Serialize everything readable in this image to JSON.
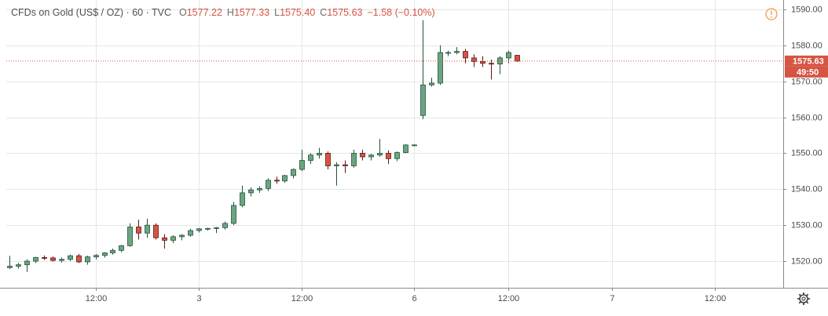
{
  "chart_data": {
    "type": "candlestick",
    "title": "CFDs on Gold (US$ / OZ) · 60 · TVC",
    "ohlc_legend": [
      {
        "key": "O",
        "text": "1577.22"
      },
      {
        "key": "H",
        "text": "1577.33"
      },
      {
        "key": "L",
        "text": "1575.40"
      },
      {
        "key": "C",
        "text": "1575.63"
      }
    ],
    "change": "−1.58 (−0.10%)",
    "price_label": "1575.63",
    "countdown": "49:50",
    "up_color": "#6ba583",
    "down_color": "#d75442",
    "open": [
      1518.2,
      1518.6,
      1519.0,
      1520.0,
      1521.0,
      1520.9,
      1520.2,
      1520.5,
      1521.5,
      1519.8,
      1521.2,
      1521.6,
      1522.3,
      1523.0,
      1524.3,
      1529.5,
      1527.8,
      1530.0,
      1526.5,
      1525.8,
      1526.8,
      1527.2,
      1528.5,
      1529.0,
      1529.1,
      1529.3,
      1530.5,
      1535.5,
      1539.0,
      1539.8,
      1540.2,
      1542.5,
      1542.3,
      1543.8,
      1545.5,
      1548.0,
      1549.5,
      1550.0,
      1546.5,
      1546.8,
      1546.5,
      1550.0,
      1549.0,
      1549.5,
      1550.0,
      1548.5,
      1550.2,
      1552.3,
      1560.5,
      1569.0,
      1569.5,
      1577.8,
      1578.0,
      1578.3,
      1576.5,
      1575.5,
      1575.0,
      1574.8,
      1576.5,
      1577.22
    ],
    "high": [
      1521.5,
      1519.5,
      1520.5,
      1521.2,
      1521.6,
      1521.3,
      1521.0,
      1521.8,
      1522.0,
      1521.5,
      1522.0,
      1522.5,
      1523.5,
      1524.5,
      1530.5,
      1531.5,
      1531.8,
      1530.5,
      1527.5,
      1527.2,
      1527.5,
      1529.0,
      1529.2,
      1529.3,
      1529.5,
      1531.0,
      1536.5,
      1541.0,
      1540.5,
      1540.8,
      1543.0,
      1543.5,
      1544.0,
      1545.8,
      1551.0,
      1550.0,
      1551.5,
      1550.5,
      1547.5,
      1548.0,
      1551.0,
      1551.0,
      1549.8,
      1554.0,
      1550.8,
      1550.5,
      1552.5,
      1552.5,
      1587.0,
      1571.0,
      1580.0,
      1578.5,
      1579.5,
      1579.0,
      1577.5,
      1577.0,
      1576.0,
      1577.0,
      1578.5,
      1577.33
    ],
    "low": [
      1517.8,
      1517.9,
      1517.0,
      1519.5,
      1520.3,
      1519.9,
      1519.6,
      1520.0,
      1519.5,
      1519.0,
      1520.5,
      1521.0,
      1521.8,
      1522.5,
      1524.0,
      1526.0,
      1526.5,
      1526.0,
      1523.5,
      1525.0,
      1525.8,
      1526.8,
      1528.0,
      1528.5,
      1527.8,
      1528.8,
      1530.0,
      1535.0,
      1538.0,
      1539.0,
      1539.5,
      1541.5,
      1541.8,
      1543.0,
      1545.0,
      1547.0,
      1548.5,
      1545.5,
      1541.0,
      1544.5,
      1546.0,
      1548.0,
      1548.0,
      1549.0,
      1547.0,
      1547.8,
      1550.0,
      1552.0,
      1559.5,
      1568.5,
      1569.0,
      1577.0,
      1577.5,
      1575.0,
      1574.0,
      1574.0,
      1570.5,
      1572.0,
      1575.0,
      1575.4
    ],
    "close": [
      1518.6,
      1519.0,
      1520.0,
      1521.0,
      1520.9,
      1520.2,
      1520.5,
      1521.5,
      1519.8,
      1521.2,
      1521.6,
      1522.3,
      1523.0,
      1524.3,
      1529.5,
      1527.8,
      1530.0,
      1526.5,
      1525.8,
      1526.8,
      1527.2,
      1528.5,
      1529.0,
      1529.1,
      1529.3,
      1530.5,
      1535.5,
      1539.0,
      1539.8,
      1540.2,
      1542.5,
      1542.3,
      1543.8,
      1545.5,
      1548.0,
      1549.5,
      1550.0,
      1546.5,
      1546.8,
      1546.5,
      1550.0,
      1549.0,
      1549.5,
      1550.0,
      1548.5,
      1550.2,
      1552.3,
      1552.3,
      1569.0,
      1569.5,
      1578.0,
      1578.0,
      1578.3,
      1576.5,
      1575.5,
      1575.0,
      1574.8,
      1576.5,
      1578.0,
      1575.63
    ],
    "xlim": [
      -0.37,
      89.95
    ],
    "xticks": [
      {
        "value": 10,
        "label": "12:00"
      },
      {
        "value": 22,
        "label": "3"
      },
      {
        "value": 34,
        "label": "12:00"
      },
      {
        "value": 47,
        "label": "6"
      },
      {
        "value": 58,
        "label": "12:00"
      },
      {
        "value": 70,
        "label": "7"
      },
      {
        "value": 82,
        "label": "12:00"
      }
    ],
    "ylim": [
      1512.6,
      1592.6
    ],
    "yticks": [
      {
        "value": 1520,
        "label": "1520.00"
      },
      {
        "value": 1530,
        "label": "1530.00"
      },
      {
        "value": 1540,
        "label": "1540.00"
      },
      {
        "value": 1550,
        "label": "1550.00"
      },
      {
        "value": 1560,
        "label": "1560.00"
      },
      {
        "value": 1570,
        "label": "1570.00"
      },
      {
        "value": 1580,
        "label": "1580.00"
      },
      {
        "value": 1590,
        "label": "1590.00"
      }
    ],
    "grid": true
  }
}
